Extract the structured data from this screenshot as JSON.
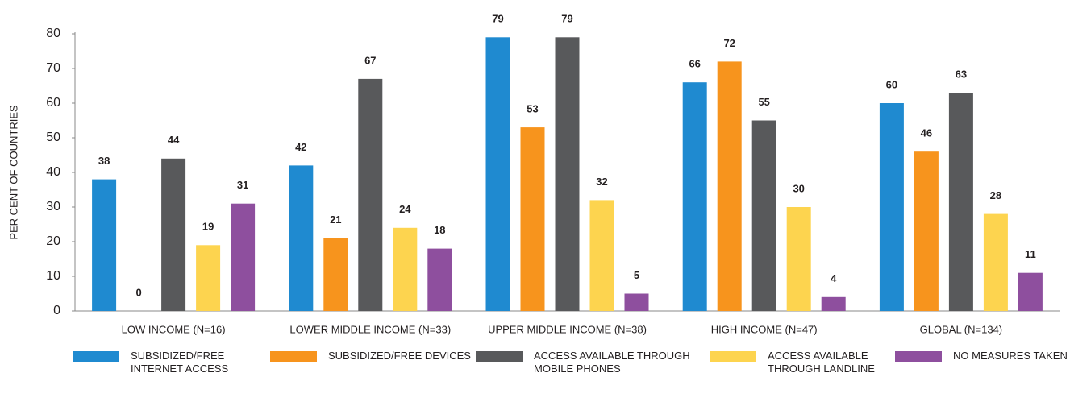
{
  "chart_data": {
    "type": "bar",
    "y_label": "PER CENT OF COUNTRIES",
    "categories": [
      "LOW INCOME (N=16)",
      "LOWER MIDDLE INCOME (N=33)",
      "UPPER MIDDLE INCOME (N=38)",
      "HIGH INCOME (N=47)",
      "GLOBAL (N=134)"
    ],
    "series": [
      {
        "name": "SUBSIDIZED/FREE INTERNET ACCESS",
        "color": "#1f8ad0",
        "values": [
          38,
          42,
          79,
          66,
          60
        ]
      },
      {
        "name": "SUBSIDIZED/FREE DEVICES",
        "color": "#f7941d",
        "values": [
          0,
          21,
          53,
          72,
          46
        ]
      },
      {
        "name": "ACCESS AVAILABLE THROUGH MOBILE PHONES",
        "color": "#58595b",
        "values": [
          44,
          67,
          79,
          55,
          63
        ]
      },
      {
        "name": "ACCESS AVAILABLE THROUGH LANDLINE",
        "color": "#fdd44f",
        "values": [
          19,
          24,
          32,
          30,
          28
        ]
      },
      {
        "name": "NO MEASURES TAKEN",
        "color": "#8e4f9e",
        "values": [
          31,
          18,
          5,
          4,
          11
        ]
      }
    ],
    "ylim": [
      0,
      80
    ],
    "yticks": [
      0,
      10,
      20,
      30,
      40,
      50,
      60,
      70,
      80
    ],
    "legend": "bottom"
  }
}
